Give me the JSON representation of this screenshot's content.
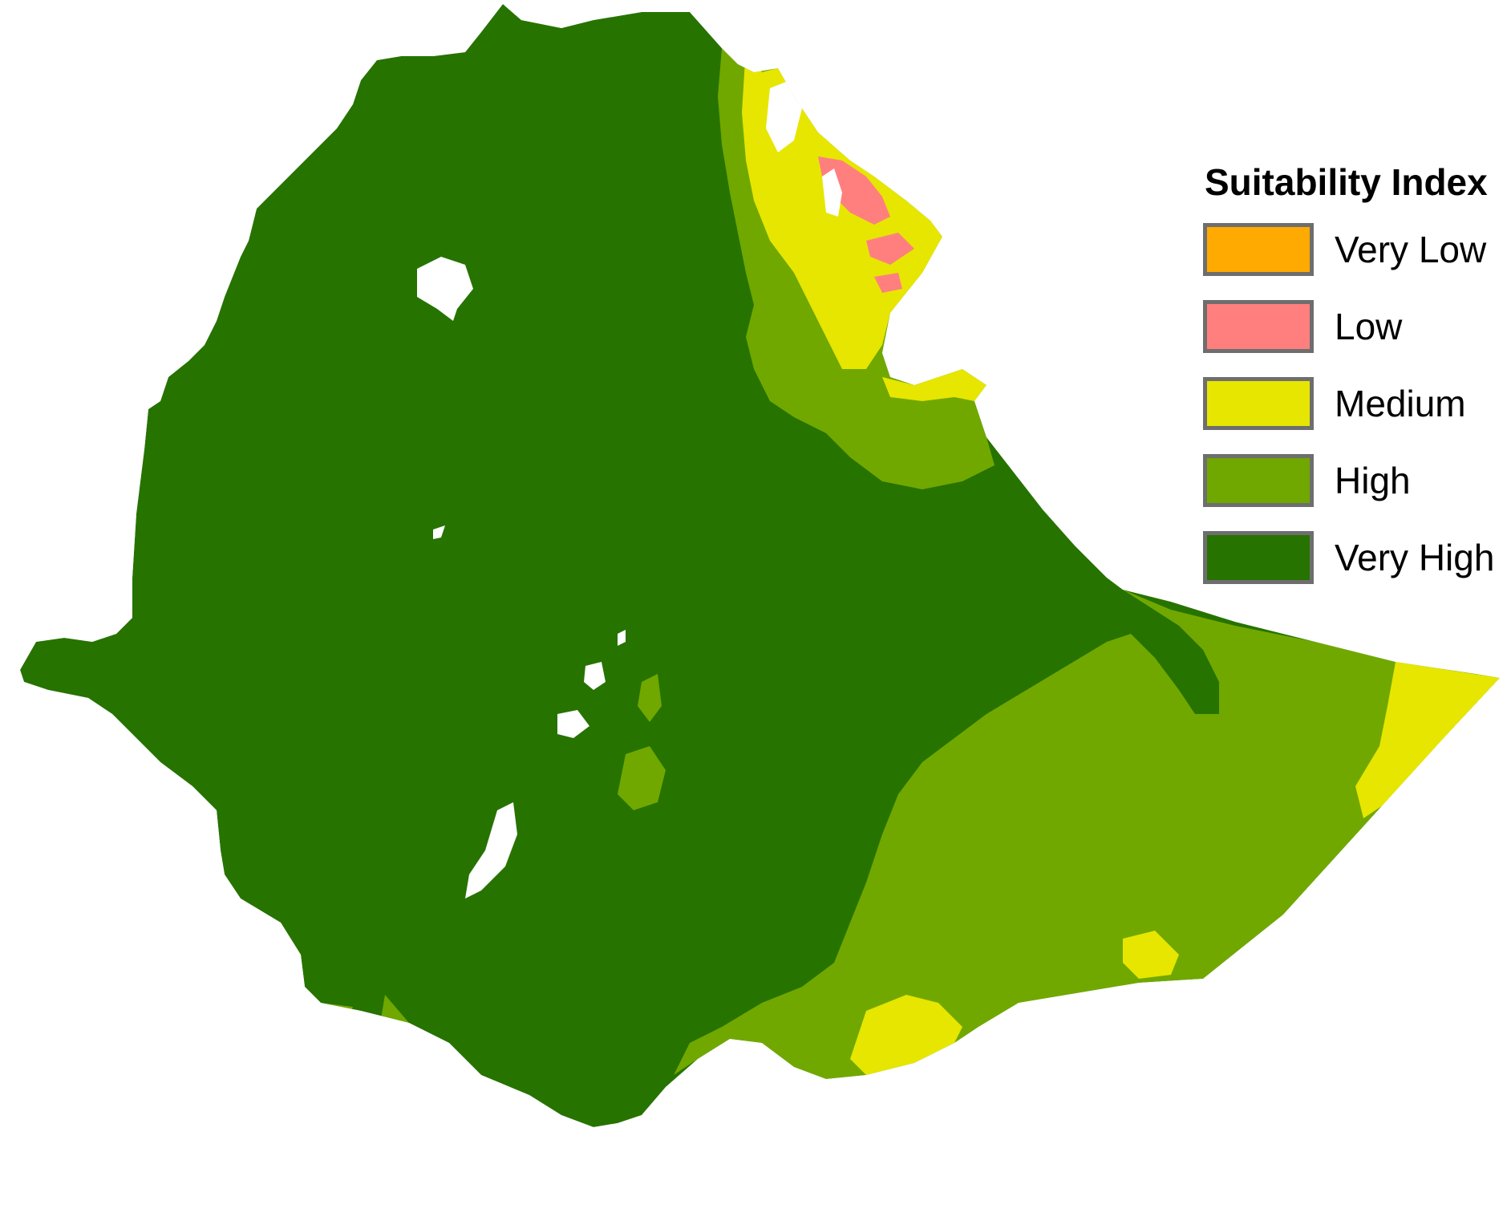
{
  "legend": {
    "title": "Suitability Index",
    "classes": [
      {
        "label": "Very Low",
        "color": "#ffaa00"
      },
      {
        "label": "Low",
        "color": "#ff7f7f"
      },
      {
        "label": "Medium",
        "color": "#e6e600"
      },
      {
        "label": "High",
        "color": "#70a800"
      },
      {
        "label": "Very High",
        "color": "#267300"
      }
    ]
  },
  "map": {
    "no_data_color": "#ffffff"
  }
}
